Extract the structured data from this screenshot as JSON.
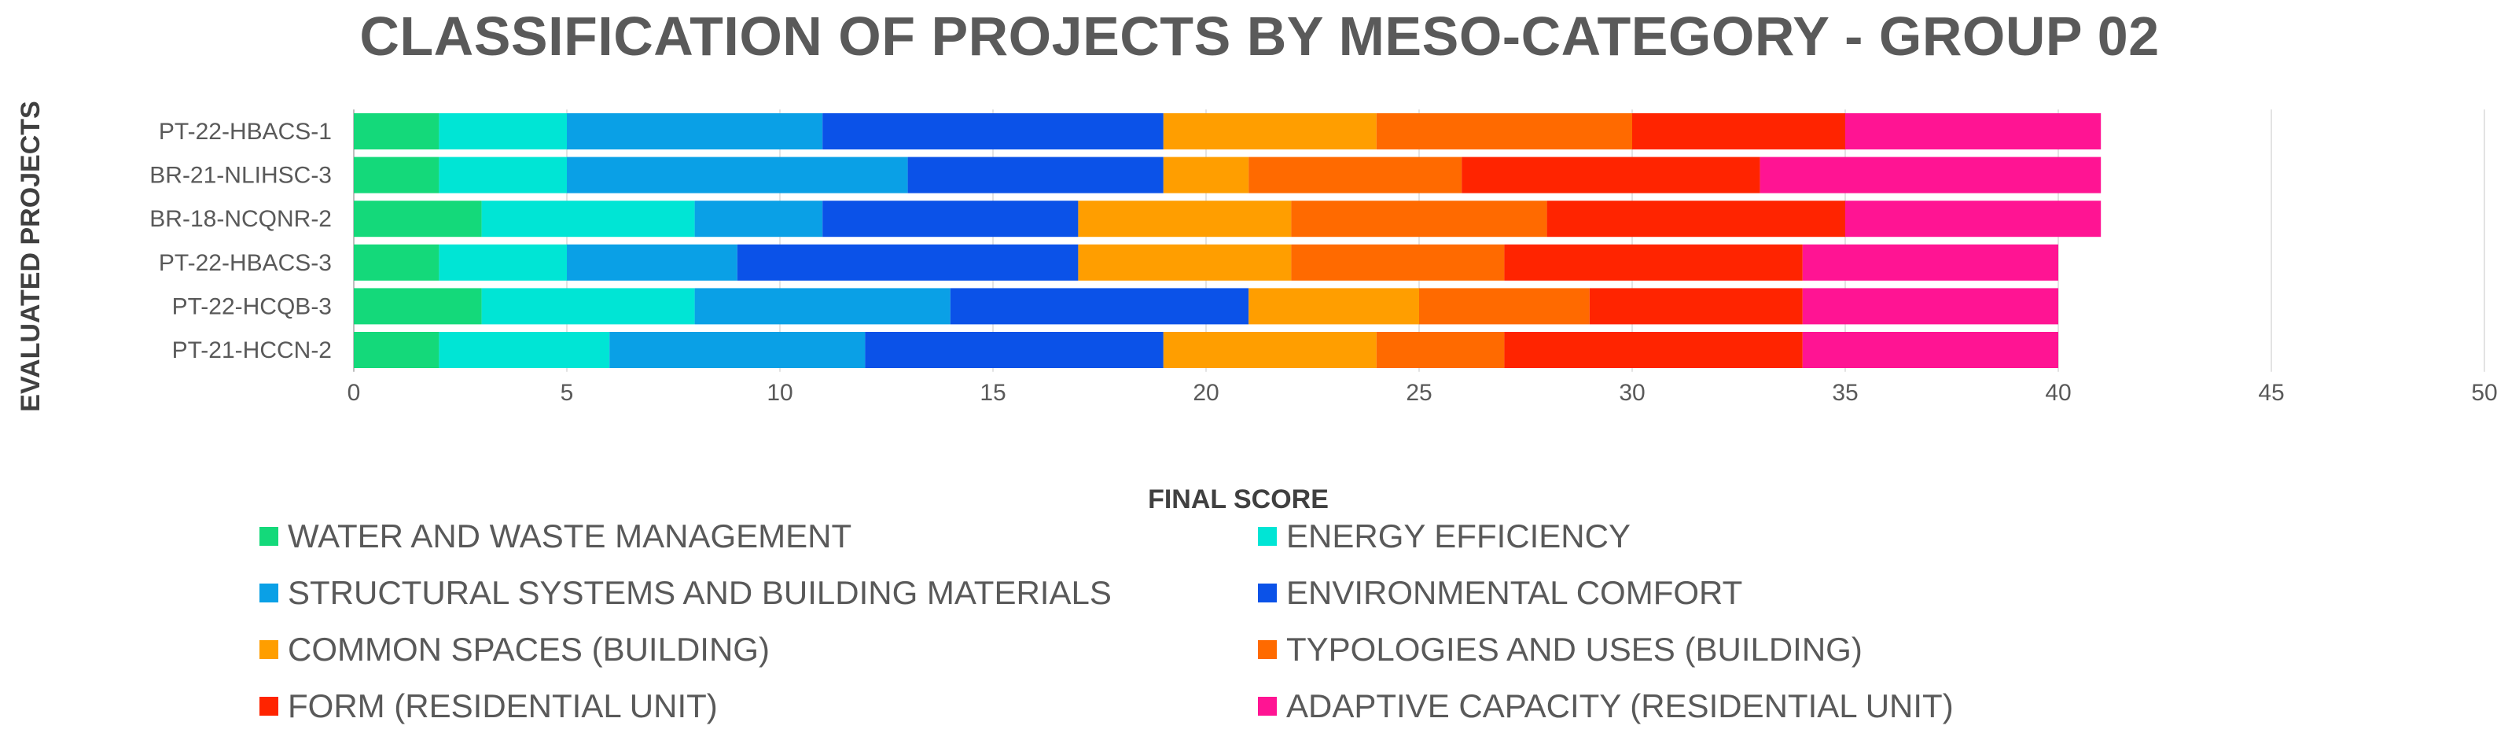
{
  "chart_data": {
    "type": "bar",
    "orientation": "horizontal",
    "stacked": true,
    "title": "CLASSIFICATION OF PROJECTS BY MESO-CATEGORY - GROUP 02",
    "xlabel": "FINAL SCORE",
    "ylabel": "EVALUATED PROJECTS",
    "xlim": [
      0,
      50
    ],
    "xticks": [
      0,
      5,
      10,
      15,
      20,
      25,
      30,
      35,
      40,
      45,
      50
    ],
    "grid": true,
    "legend_position": "bottom",
    "categories": [
      "PT-22-HBACS-1",
      "BR-21-NLIHSC-3",
      "BR-18-NCQNR-2",
      "PT-22-HBACS-3",
      "PT-22-HCQB-3",
      "PT-21-HCCN-2"
    ],
    "series": [
      {
        "name": "WATER AND WASTE MANAGEMENT",
        "color": "#14d97a",
        "values": [
          2,
          2,
          3,
          2,
          3,
          2
        ]
      },
      {
        "name": "ENERGY EFFICIENCY",
        "color": "#00e5d5",
        "values": [
          3,
          3,
          5,
          3,
          5,
          4
        ]
      },
      {
        "name": "STRUCTURAL SYSTEMS AND BUILDING MATERIALS",
        "color": "#0aa0e6",
        "values": [
          6,
          8,
          3,
          4,
          6,
          6
        ]
      },
      {
        "name": "ENVIRONMENTAL COMFORT",
        "color": "#0b52e8",
        "values": [
          8,
          6,
          6,
          8,
          7,
          7
        ]
      },
      {
        "name": "COMMON SPACES (BUILDING)",
        "color": "#ff9e00",
        "values": [
          5,
          2,
          5,
          5,
          4,
          5
        ]
      },
      {
        "name": "TYPOLOGIES AND USES (BUILDING)",
        "color": "#ff6a00",
        "values": [
          6,
          5,
          6,
          5,
          4,
          3
        ]
      },
      {
        "name": "FORM (RESIDENTIAL UNIT)",
        "color": "#ff2400",
        "values": [
          5,
          7,
          7,
          7,
          5,
          7
        ]
      },
      {
        "name": "ADAPTIVE CAPACITY (RESIDENTIAL UNIT)",
        "color": "#ff1493",
        "values": [
          6,
          8,
          6,
          6,
          6,
          6
        ]
      }
    ]
  }
}
